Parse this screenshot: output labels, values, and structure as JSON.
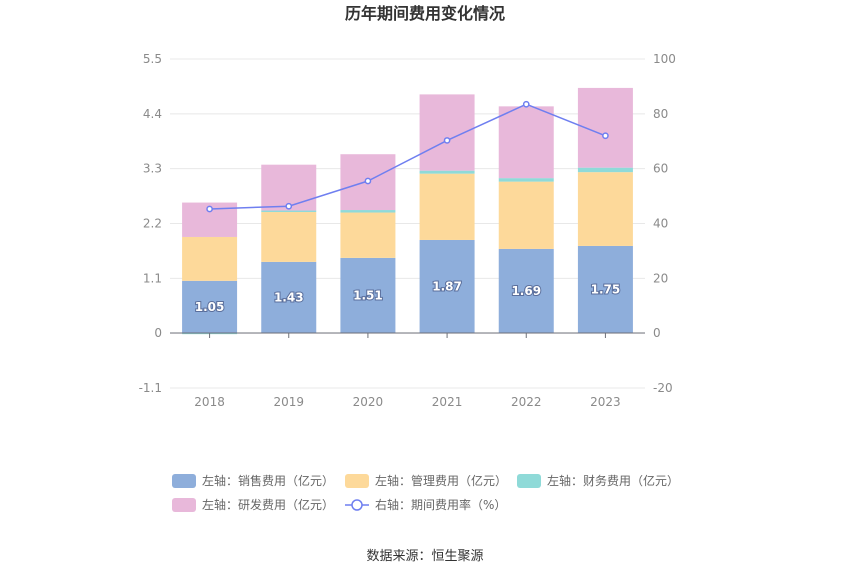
{
  "chart_data": {
    "type": "bar",
    "title": "历年期间费用变化情况",
    "categories": [
      "2018",
      "2019",
      "2020",
      "2021",
      "2022",
      "2023"
    ],
    "series": [
      {
        "name": "左轴：销售费用（亿元）",
        "type": "bar",
        "axis": "left",
        "color": "#8eaedb",
        "values": [
          1.05,
          1.43,
          1.51,
          1.87,
          1.69,
          1.75
        ],
        "show_labels": true
      },
      {
        "name": "左轴：管理费用（亿元）",
        "type": "bar",
        "axis": "left",
        "color": "#fdd99a",
        "values": [
          0.88,
          1.0,
          0.91,
          1.33,
          1.35,
          1.48
        ],
        "show_labels": false
      },
      {
        "name": "左轴：财务费用（亿元）",
        "type": "bar",
        "axis": "left",
        "color": "#8fdad8",
        "values": [
          -0.02,
          0.03,
          0.05,
          0.06,
          0.07,
          0.09
        ],
        "show_labels": false
      },
      {
        "name": "左轴：研发费用（亿元）",
        "type": "bar",
        "axis": "left",
        "color": "#e8b8da",
        "values": [
          0.69,
          0.92,
          1.12,
          1.53,
          1.44,
          1.6
        ],
        "show_labels": false
      },
      {
        "name": "右轴：期间费用率（%）",
        "type": "line",
        "axis": "right",
        "color": "#6f7ff0",
        "values": [
          45.3,
          46.3,
          55.5,
          70.3,
          83.5,
          72.0
        ],
        "show_labels": false
      }
    ],
    "left_axis": {
      "min": -1.1,
      "max": 5.5,
      "ticks": [
        "-1.1",
        "0",
        "1.1",
        "2.2",
        "3.3",
        "4.4",
        "5.5"
      ]
    },
    "right_axis": {
      "min": -20,
      "max": 100,
      "ticks": [
        "-20",
        "0",
        "20",
        "40",
        "60",
        "80",
        "100"
      ]
    },
    "grid": true,
    "legend_position": "bottom"
  },
  "source": "数据来源：恒生聚源"
}
